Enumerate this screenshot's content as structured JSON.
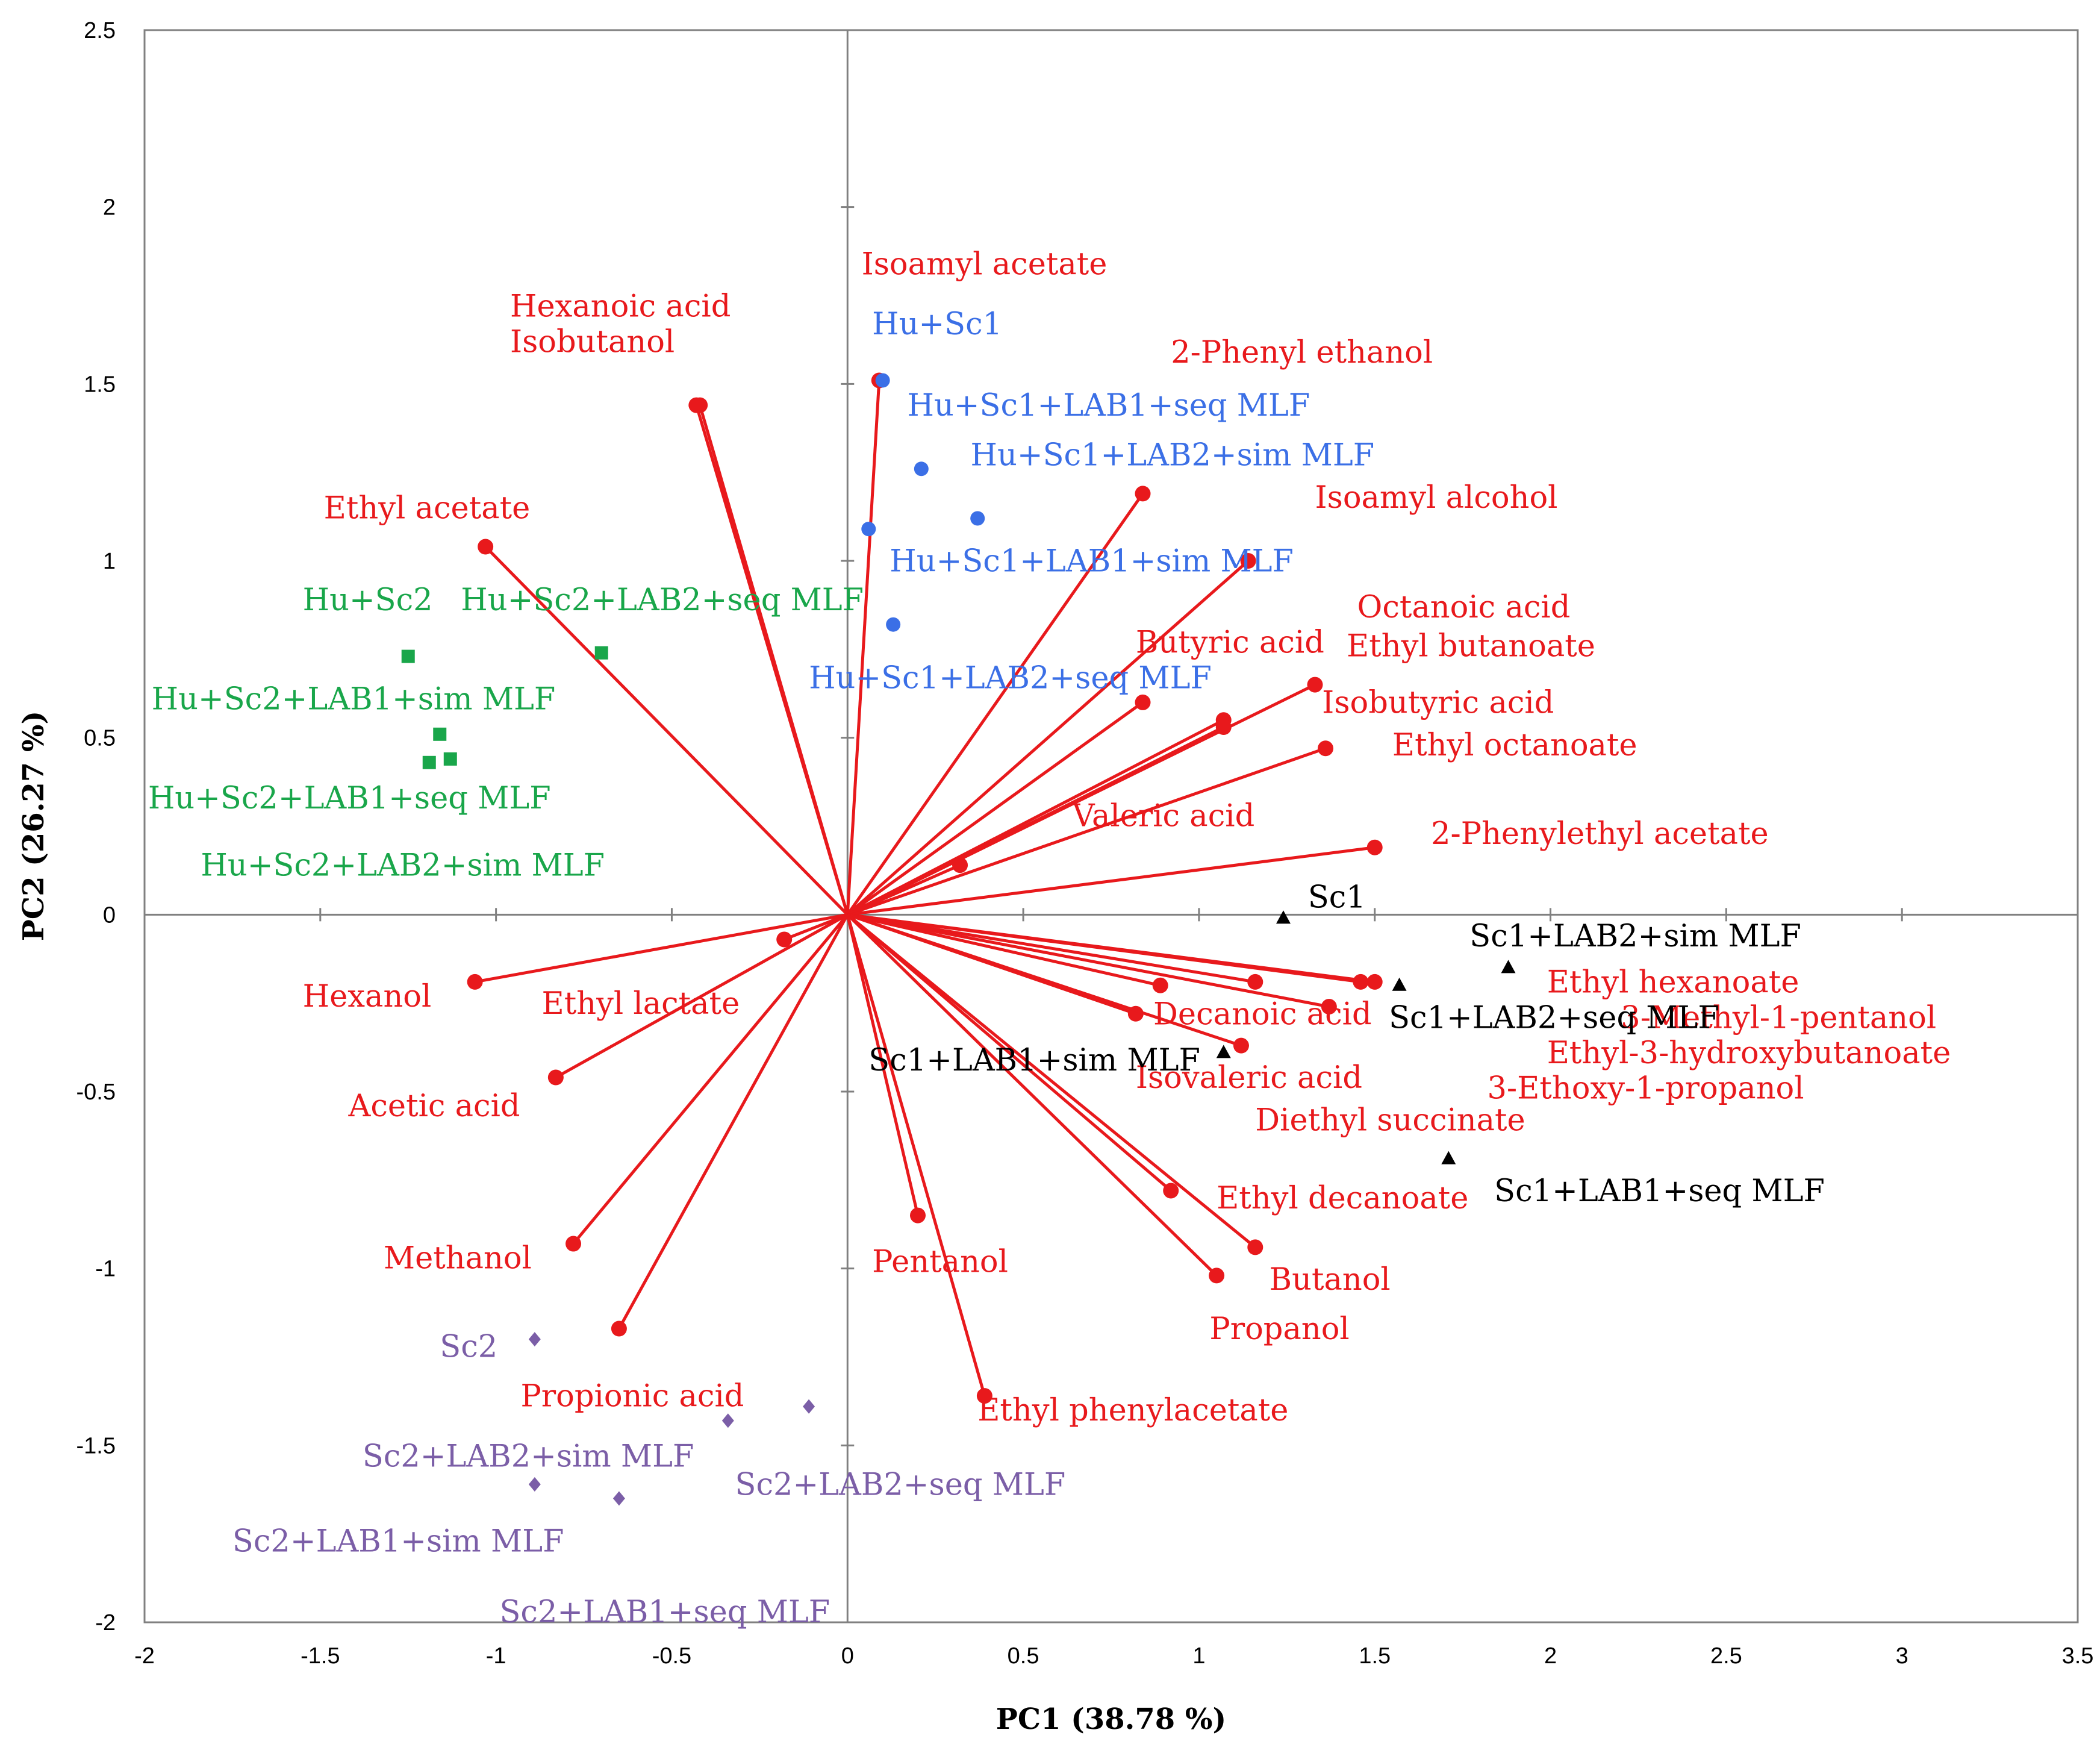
{
  "chart_data": {
    "type": "scatter",
    "subtype": "pca-biplot",
    "title": "",
    "xlabel": "PC1 (38.78 %)",
    "ylabel": "PC2 (26.27 %)",
    "xlim": [
      -2,
      3.5
    ],
    "ylim": [
      -2,
      2.5
    ],
    "xticks": [
      -2,
      -1.5,
      -1,
      -0.5,
      0,
      0.5,
      1,
      1.5,
      2,
      2.5,
      3,
      3.5
    ],
    "yticks": [
      -2,
      -1.5,
      -1,
      -0.5,
      0,
      0.5,
      1,
      1.5,
      2,
      2.5
    ],
    "xtick_labels": [
      "-2",
      "-1.5",
      "-1",
      "-0.5",
      "0",
      "0.5",
      "1",
      "1.5",
      "2",
      "2.5",
      "3",
      "3.5"
    ],
    "ytick_labels": [
      "-2",
      "-1.5",
      "-1",
      "-0.5",
      "0",
      "0.5",
      "1",
      "1.5",
      "2",
      "2.5"
    ],
    "grid": false,
    "colors": {
      "loadings": "#e8191c",
      "hu_sc1": "#3b6fe6",
      "hu_sc2": "#19a64a",
      "sc1": "#000000",
      "sc2": "#7b5ea7"
    },
    "loadings": [
      {
        "name": "Isoamyl acetate",
        "x": 0.09,
        "y": 1.51
      },
      {
        "name": "Hexanoic acid",
        "x": -0.42,
        "y": 1.44
      },
      {
        "name": "Isobutanol",
        "x": -0.43,
        "y": 1.44
      },
      {
        "name": "2-Phenyl ethanol",
        "x": 0.84,
        "y": 1.19
      },
      {
        "name": "Ethyl acetate",
        "x": -1.03,
        "y": 1.04
      },
      {
        "name": "Isoamyl alcohol",
        "x": 1.14,
        "y": 1.0
      },
      {
        "name": "Octanoic acid",
        "x": 1.33,
        "y": 0.65
      },
      {
        "name": "Ethyl butanoate",
        "x": 1.07,
        "y": 0.55
      },
      {
        "name": "Butyric acid",
        "x": 0.84,
        "y": 0.6
      },
      {
        "name": "Isobutyric acid",
        "x": 1.07,
        "y": 0.53
      },
      {
        "name": "Ethyl octanoate",
        "x": 1.36,
        "y": 0.47
      },
      {
        "name": "Valeric acid",
        "x": 0.32,
        "y": 0.14
      },
      {
        "name": "2-Phenylethyl acetate",
        "x": 1.5,
        "y": 0.19
      },
      {
        "name": "Ethyl hexanoate",
        "x": 1.5,
        "y": -0.19
      },
      {
        "name": "3-Methyl-1-pentanol",
        "x": 1.46,
        "y": -0.19
      },
      {
        "name": "Ethyl-3-hydroxybutanoate",
        "x": 1.37,
        "y": -0.26
      },
      {
        "name": "3-Ethoxy-1-propanol",
        "x": 1.16,
        "y": -0.19
      },
      {
        "name": "Decanoic acid",
        "x": 0.89,
        "y": -0.2
      },
      {
        "name": "Isovaleric acid",
        "x": 0.82,
        "y": -0.28
      },
      {
        "name": "Diethyl succinate",
        "x": 1.12,
        "y": -0.37
      },
      {
        "name": "Ethyl decanoate",
        "x": 0.92,
        "y": -0.78
      },
      {
        "name": "Butanol",
        "x": 1.16,
        "y": -0.94
      },
      {
        "name": "Propanol",
        "x": 1.05,
        "y": -1.02
      },
      {
        "name": "Pentanol",
        "x": 0.2,
        "y": -0.85
      },
      {
        "name": "Ethyl phenylacetate",
        "x": 0.39,
        "y": -1.36
      },
      {
        "name": "Ethyl lactate",
        "x": -0.18,
        "y": -0.07
      },
      {
        "name": "Hexanol",
        "x": -1.06,
        "y": -0.19
      },
      {
        "name": "Acetic acid",
        "x": -0.83,
        "y": -0.46
      },
      {
        "name": "Methanol",
        "x": -0.78,
        "y": -0.93
      },
      {
        "name": "Propionic acid",
        "x": -0.65,
        "y": -1.17
      }
    ],
    "loading_labels": [
      {
        "text": "Isoamyl acetate",
        "x": 0.04,
        "y": 1.81
      },
      {
        "text": "Hexanoic acid",
        "x": -0.96,
        "y": 1.69
      },
      {
        "text": "Isobutanol",
        "x": -0.96,
        "y": 1.59
      },
      {
        "text": "2-Phenyl ethanol",
        "x": 0.92,
        "y": 1.56
      },
      {
        "text": "Ethyl acetate",
        "x": -1.49,
        "y": 1.12
      },
      {
        "text": "Isoamyl alcohol",
        "x": 1.33,
        "y": 1.15
      },
      {
        "text": "Octanoic acid",
        "x": 1.45,
        "y": 0.84
      },
      {
        "text": "Ethyl butanoate",
        "x": 1.42,
        "y": 0.73
      },
      {
        "text": "Butyric acid",
        "x": 0.82,
        "y": 0.74
      },
      {
        "text": "Isobutyric acid",
        "x": 1.35,
        "y": 0.57
      },
      {
        "text": "Ethyl octanoate",
        "x": 1.55,
        "y": 0.45
      },
      {
        "text": "Valeric acid",
        "x": 0.64,
        "y": 0.25
      },
      {
        "text": "2-Phenylethyl acetate",
        "x": 1.66,
        "y": 0.2
      },
      {
        "text": "Ethyl hexanoate",
        "x": 1.99,
        "y": -0.22
      },
      {
        "text": "3-Methyl-1-pentanol",
        "x": 2.2,
        "y": -0.32
      },
      {
        "text": "Ethyl-3-hydroxybutanoate",
        "x": 1.99,
        "y": -0.42
      },
      {
        "text": "3-Ethoxy-1-propanol",
        "x": 1.82,
        "y": -0.52
      },
      {
        "text": "Decanoic acid",
        "x": 0.87,
        "y": -0.31
      },
      {
        "text": "Isovaleric acid",
        "x": 0.82,
        "y": -0.49
      },
      {
        "text": "Diethyl succinate",
        "x": 1.16,
        "y": -0.61
      },
      {
        "text": "Ethyl decanoate",
        "x": 1.05,
        "y": -0.83
      },
      {
        "text": "Butanol",
        "x": 1.2,
        "y": -1.06
      },
      {
        "text": "Propanol",
        "x": 1.03,
        "y": -1.2
      },
      {
        "text": "Pentanol",
        "x": 0.07,
        "y": -1.01
      },
      {
        "text": "Ethyl phenylacetate",
        "x": 0.37,
        "y": -1.43
      },
      {
        "text": "Ethyl lactate",
        "x": -0.87,
        "y": -0.28
      },
      {
        "text": "Hexanol",
        "x": -1.55,
        "y": -0.26
      },
      {
        "text": "Acetic acid",
        "x": -1.42,
        "y": -0.57
      },
      {
        "text": "Methanol",
        "x": -1.32,
        "y": -1.0
      },
      {
        "text": "Propionic acid",
        "x": -0.93,
        "y": -1.39
      }
    ],
    "scores": [
      {
        "group": "Hu+Sc1",
        "label": "Hu+Sc1",
        "x": 0.1,
        "y": 1.51,
        "lx": 0.07,
        "ly": 1.64
      },
      {
        "group": "Hu+Sc1",
        "label": "Hu+Sc1+LAB1+seq MLF",
        "x": 0.21,
        "y": 1.26,
        "lx": 0.17,
        "ly": 1.41
      },
      {
        "group": "Hu+Sc1",
        "label": "Hu+Sc1+LAB2+sim MLF",
        "x": 0.37,
        "y": 1.12,
        "lx": 0.35,
        "ly": 1.27
      },
      {
        "group": "Hu+Sc1",
        "label": "Hu+Sc1+LAB1+sim MLF",
        "x": 0.06,
        "y": 1.09,
        "lx": 0.12,
        "ly": 0.97
      },
      {
        "group": "Hu+Sc1",
        "label": "Hu+Sc1+LAB2+seq MLF",
        "x": 0.13,
        "y": 0.82,
        "lx": -0.11,
        "ly": 0.64
      },
      {
        "group": "Hu+Sc2",
        "label": "Hu+Sc2",
        "x": -1.25,
        "y": 0.73,
        "lx": -1.55,
        "ly": 0.86
      },
      {
        "group": "Hu+Sc2",
        "label": "Hu+Sc2+LAB2+seq MLF",
        "x": -0.7,
        "y": 0.74,
        "lx": -1.1,
        "ly": 0.86
      },
      {
        "group": "Hu+Sc2",
        "label": "Hu+Sc2+LAB1+sim MLF",
        "x": -1.16,
        "y": 0.51,
        "lx": -1.98,
        "ly": 0.58
      },
      {
        "group": "Hu+Sc2",
        "label": "Hu+Sc2+LAB1+seq MLF",
        "x": -1.19,
        "y": 0.43,
        "lx": -1.99,
        "ly": 0.3
      },
      {
        "group": "Hu+Sc2",
        "label": "Hu+Sc2+LAB2+sim MLF",
        "x": -1.13,
        "y": 0.44,
        "lx": -1.84,
        "ly": 0.11
      },
      {
        "group": "Sc1",
        "label": "Sc1",
        "x": 1.24,
        "y": -0.01,
        "lx": 1.31,
        "ly": 0.02
      },
      {
        "group": "Sc1",
        "label": "Sc1+LAB2+sim MLF",
        "x": 1.88,
        "y": -0.15,
        "lx": 1.77,
        "ly": -0.09
      },
      {
        "group": "Sc1",
        "label": "Sc1+LAB2+seq MLF",
        "x": 1.57,
        "y": -0.2,
        "lx": 1.54,
        "ly": -0.32
      },
      {
        "group": "Sc1",
        "label": "Sc1+LAB1+sim MLF",
        "x": 1.07,
        "y": -0.39,
        "lx": 0.06,
        "ly": -0.44
      },
      {
        "group": "Sc1",
        "label": "Sc1+LAB1+seq MLF",
        "x": 1.71,
        "y": -0.69,
        "lx": 1.84,
        "ly": -0.81
      },
      {
        "group": "Sc2",
        "label": "Sc2",
        "x": -0.89,
        "y": -1.2,
        "lx": -1.16,
        "ly": -1.25
      },
      {
        "group": "Sc2",
        "label": "Sc2+LAB2+sim MLF",
        "x": -0.34,
        "y": -1.43,
        "lx": -1.38,
        "ly": -1.56
      },
      {
        "group": "Sc2",
        "label": "Sc2+LAB2+seq MLF",
        "x": -0.11,
        "y": -1.39,
        "lx": -0.32,
        "ly": -1.64
      },
      {
        "group": "Sc2",
        "label": "Sc2+LAB1+sim MLF",
        "x": -0.89,
        "y": -1.61,
        "lx": -1.75,
        "ly": -1.8
      },
      {
        "group": "Sc2",
        "label": "Sc2+LAB1+seq MLF",
        "x": -0.65,
        "y": -1.65,
        "lx": -0.99,
        "ly": -2.0
      }
    ]
  }
}
